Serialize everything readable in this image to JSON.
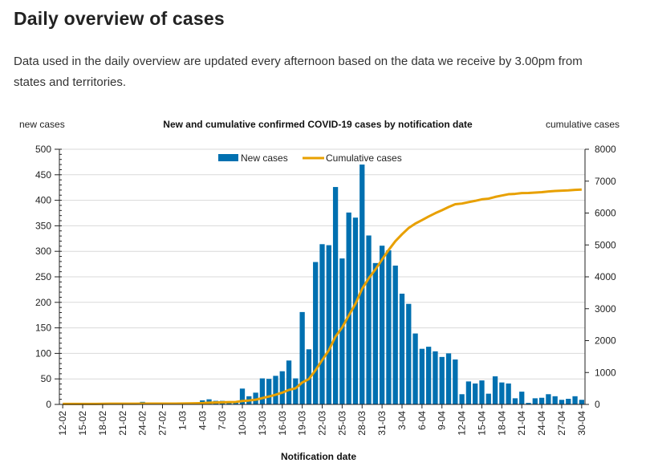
{
  "page": {
    "title": "Daily overview of cases",
    "intro": "Data used in the daily overview are updated every afternoon based on the data we receive by 3.00pm from states and territories."
  },
  "colors": {
    "bar": "#0070b0",
    "line": "#e8a000",
    "grid": "#d9d9d9",
    "axis": "#222222"
  },
  "chart_data": {
    "type": "bar",
    "title": "New and cumulative confirmed COVID-19 cases by notification date",
    "xlabel": "Notification date",
    "ylabel": "new cases",
    "y2label": "cumulative cases",
    "ylim": [
      0,
      500
    ],
    "y2lim": [
      0,
      8000
    ],
    "yticks": [
      0,
      50,
      100,
      150,
      200,
      250,
      300,
      350,
      400,
      450,
      500
    ],
    "y2ticks": [
      0,
      1000,
      2000,
      3000,
      4000,
      5000,
      6000,
      7000,
      8000
    ],
    "grid": true,
    "legend": {
      "position": "top-center",
      "entries": [
        "New cases",
        "Cumulative cases"
      ]
    },
    "xtick_labels": [
      "12-02",
      "15-02",
      "18-02",
      "21-02",
      "24-02",
      "27-02",
      "1-03",
      "4-03",
      "7-03",
      "10-03",
      "13-03",
      "16-03",
      "19-03",
      "22-03",
      "25-03",
      "28-03",
      "31-03",
      "3-04",
      "6-04",
      "9-04",
      "12-04",
      "15-04",
      "18-04",
      "21-04",
      "24-04",
      "27-04",
      "30-04"
    ],
    "categories": [
      "12-02",
      "13-02",
      "14-02",
      "15-02",
      "16-02",
      "17-02",
      "18-02",
      "19-02",
      "20-02",
      "21-02",
      "22-02",
      "23-02",
      "24-02",
      "25-02",
      "26-02",
      "27-02",
      "28-02",
      "29-02",
      "1-03",
      "2-03",
      "3-03",
      "4-03",
      "5-03",
      "6-03",
      "7-03",
      "8-03",
      "9-03",
      "10-03",
      "11-03",
      "12-03",
      "13-03",
      "14-03",
      "15-03",
      "16-03",
      "17-03",
      "18-03",
      "19-03",
      "20-03",
      "21-03",
      "22-03",
      "23-03",
      "24-03",
      "25-03",
      "26-03",
      "27-03",
      "28-03",
      "29-03",
      "30-03",
      "31-03",
      "1-04",
      "2-04",
      "3-04",
      "4-04",
      "5-04",
      "6-04",
      "7-04",
      "8-04",
      "9-04",
      "10-04",
      "11-04",
      "12-04",
      "13-04",
      "14-04",
      "15-04",
      "16-04",
      "17-04",
      "18-04",
      "19-04",
      "20-04",
      "21-04",
      "22-04",
      "23-04",
      "24-04",
      "25-04",
      "26-04",
      "27-04",
      "28-04",
      "29-04",
      "30-04"
    ],
    "series": [
      {
        "name": "New cases",
        "type": "bar",
        "axis": "left",
        "values": [
          0,
          0,
          0,
          0,
          0,
          0,
          0,
          0,
          0,
          0,
          0,
          0,
          5,
          0,
          0,
          0,
          0,
          0,
          1,
          3,
          4,
          8,
          10,
          7,
          7,
          6,
          5,
          31,
          16,
          23,
          51,
          50,
          56,
          65,
          86,
          51,
          181,
          108,
          279,
          314,
          312,
          426,
          286,
          376,
          366,
          470,
          331,
          277,
          311,
          302,
          272,
          217,
          197,
          139,
          109,
          113,
          104,
          93,
          100,
          88,
          20,
          45,
          41,
          47,
          21,
          55,
          43,
          41,
          12,
          25,
          3,
          12,
          13,
          20,
          16,
          9,
          11,
          16,
          9
        ]
      },
      {
        "name": "Cumulative cases",
        "type": "line",
        "axis": "right",
        "values": [
          15,
          15,
          15,
          15,
          15,
          15,
          20,
          21,
          21,
          22,
          22,
          22,
          25,
          25,
          25,
          25,
          25,
          25,
          27,
          30,
          34,
          42,
          52,
          59,
          66,
          72,
          77,
          108,
          124,
          147,
          198,
          248,
          304,
          369,
          455,
          506,
          687,
          795,
          1074,
          1388,
          1700,
          2126,
          2412,
          2788,
          3154,
          3624,
          3955,
          4232,
          4543,
          4845,
          5117,
          5334,
          5531,
          5670,
          5779,
          5892,
          5996,
          6089,
          6189,
          6277,
          6297,
          6342,
          6383,
          6430,
          6451,
          6506,
          6549,
          6590,
          6602,
          6627,
          6630,
          6642,
          6655,
          6675,
          6691,
          6700,
          6711,
          6727,
          6736
        ]
      }
    ]
  }
}
